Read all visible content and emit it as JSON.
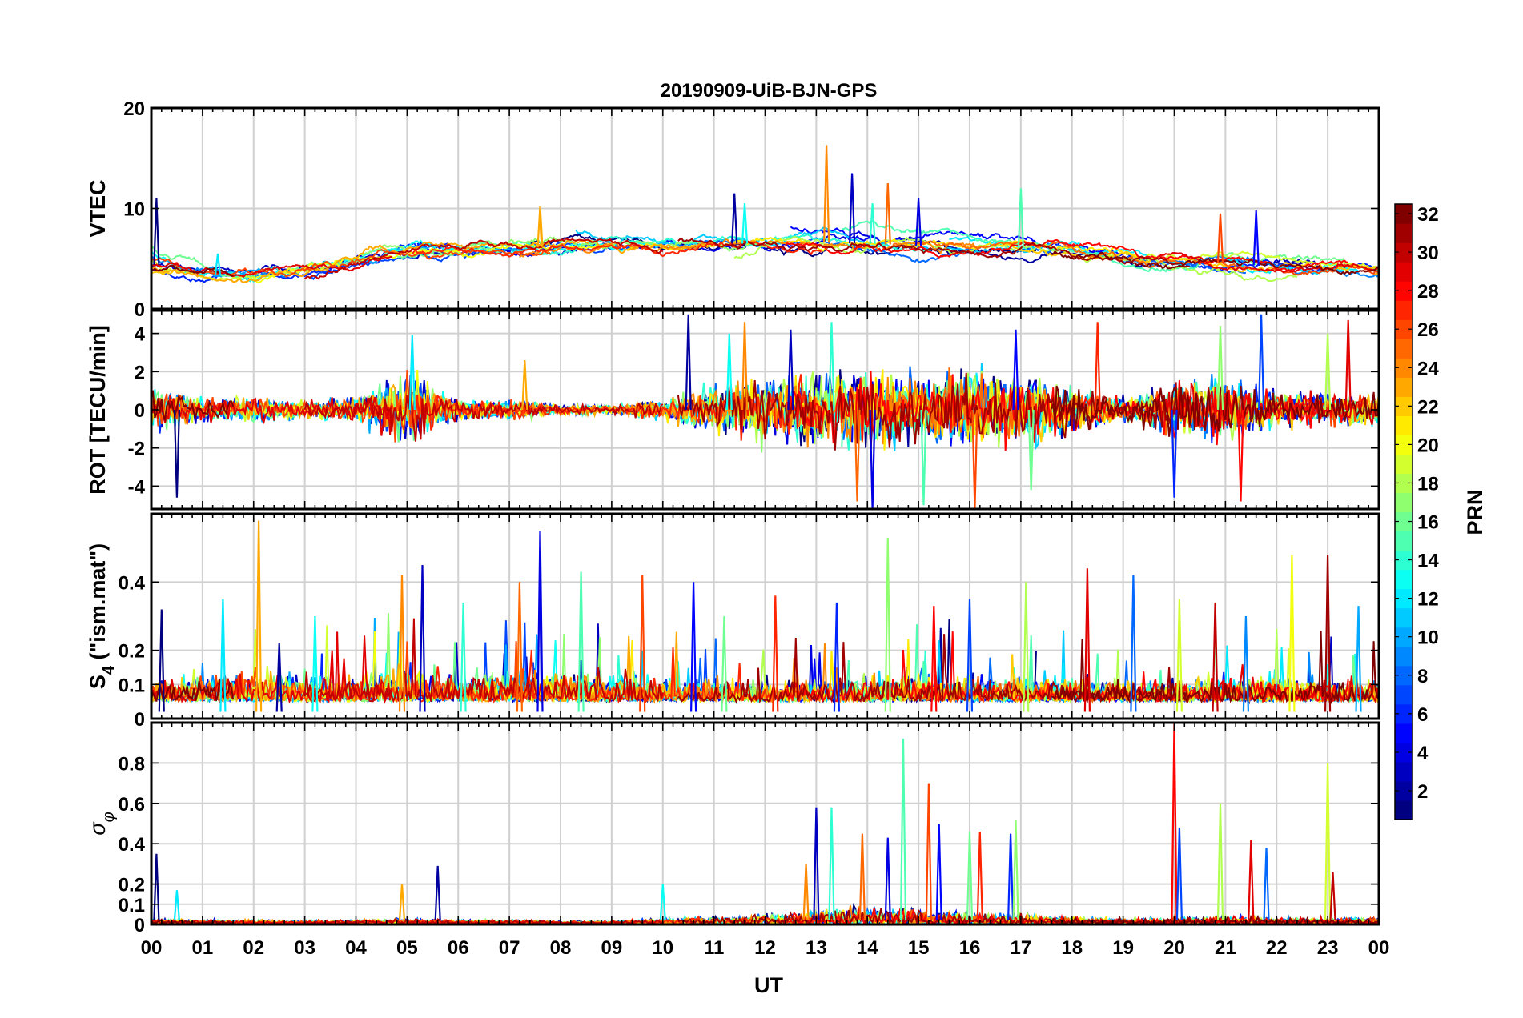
{
  "chart_data": {
    "type": "line",
    "title": "20190909-UiB-BJN-GPS",
    "xlabel": "UT",
    "x_ticks": [
      "00",
      "01",
      "02",
      "03",
      "04",
      "05",
      "06",
      "07",
      "08",
      "09",
      "10",
      "11",
      "12",
      "13",
      "14",
      "15",
      "16",
      "17",
      "18",
      "19",
      "20",
      "21",
      "22",
      "23",
      "00"
    ],
    "x_range_hours": [
      0,
      24
    ],
    "grid": true,
    "panels": [
      {
        "ylabel": "VTEC",
        "ylim": [
          0,
          20
        ],
        "yticks": [
          0,
          10,
          20
        ],
        "ytick_labels": [
          "0",
          "10",
          "20"
        ],
        "baseline_profile": [
          [
            0,
            4.5
          ],
          [
            1,
            3.5
          ],
          [
            2,
            3.2
          ],
          [
            3,
            3.8
          ],
          [
            4,
            4.8
          ],
          [
            5,
            5.6
          ],
          [
            6,
            5.8
          ],
          [
            7,
            6
          ],
          [
            8,
            6.2
          ],
          [
            9,
            6.2
          ],
          [
            10,
            6.2
          ],
          [
            11,
            6.5
          ],
          [
            12,
            6.5
          ],
          [
            13,
            6.6
          ],
          [
            14,
            6.5
          ],
          [
            15,
            6.3
          ],
          [
            16,
            6
          ],
          [
            17,
            6
          ],
          [
            18,
            5.8
          ],
          [
            19,
            5.2
          ],
          [
            20,
            4.8
          ],
          [
            21,
            4.6
          ],
          [
            22,
            4.2
          ],
          [
            23,
            4
          ],
          [
            24,
            4
          ]
        ],
        "peaks": [
          [
            0.1,
            11
          ],
          [
            1.3,
            5.5
          ],
          [
            7.6,
            10.2
          ],
          [
            11.4,
            11.5
          ],
          [
            11.6,
            10.5
          ],
          [
            13.2,
            16.3
          ],
          [
            13.7,
            13.5
          ],
          [
            14.1,
            10.5
          ],
          [
            14.4,
            12.5
          ],
          [
            15.0,
            11
          ],
          [
            17.0,
            12
          ],
          [
            20.9,
            9.5
          ],
          [
            21.6,
            9.8
          ]
        ]
      },
      {
        "ylabel": "ROT [TECU/min]",
        "ylim": [
          -5.2,
          5.2
        ],
        "yticks": [
          -4,
          -2,
          0,
          2,
          4
        ],
        "ytick_labels": [
          "-4",
          "-2",
          "0",
          "2",
          "4"
        ],
        "activity_profile": [
          [
            0,
            1.6
          ],
          [
            1,
            0.9
          ],
          [
            2,
            0.9
          ],
          [
            3,
            0.7
          ],
          [
            4,
            0.9
          ],
          [
            5,
            2.6
          ],
          [
            6,
            0.7
          ],
          [
            7,
            0.7
          ],
          [
            8,
            0.4
          ],
          [
            9,
            0.3
          ],
          [
            10,
            0.7
          ],
          [
            11,
            1.8
          ],
          [
            12,
            2.3
          ],
          [
            13,
            2.6
          ],
          [
            14,
            2.9
          ],
          [
            15,
            2.3
          ],
          [
            16,
            2.9
          ],
          [
            17,
            2.6
          ],
          [
            18,
            1.7
          ],
          [
            19,
            0.8
          ],
          [
            20,
            1.9
          ],
          [
            21,
            2.3
          ],
          [
            22,
            1.2
          ],
          [
            23,
            1.1
          ],
          [
            24,
            1.2
          ]
        ],
        "spikes": [
          [
            0.5,
            -4.6
          ],
          [
            5.1,
            3.9
          ],
          [
            7.3,
            2.6
          ],
          [
            10.5,
            5.0
          ],
          [
            11.3,
            4.0
          ],
          [
            11.6,
            4.6
          ],
          [
            12.5,
            4.2
          ],
          [
            13.3,
            4.6
          ],
          [
            13.8,
            -4.8
          ],
          [
            14.1,
            -5.2
          ],
          [
            15.1,
            -5.0
          ],
          [
            16.1,
            -5.2
          ],
          [
            16.9,
            4.2
          ],
          [
            17.2,
            -4.2
          ],
          [
            18.5,
            4.6
          ],
          [
            20.0,
            -4.6
          ],
          [
            20.9,
            4.4
          ],
          [
            21.3,
            -4.8
          ],
          [
            21.7,
            5.0
          ],
          [
            23.0,
            4.0
          ],
          [
            23.4,
            4.7
          ]
        ]
      },
      {
        "ylabel": "S_4 (\"ism.mat\")",
        "ylim": [
          0,
          0.6
        ],
        "yticks": [
          0,
          0.1,
          0.2,
          0.4
        ],
        "ytick_labels": [
          "0",
          "0.1",
          "0.2",
          "0.4"
        ],
        "activity_profile": [
          [
            0,
            0.1
          ],
          [
            1,
            0.12
          ],
          [
            2,
            0.15
          ],
          [
            3,
            0.13
          ],
          [
            4,
            0.12
          ],
          [
            5,
            0.16
          ],
          [
            6,
            0.12
          ],
          [
            7,
            0.16
          ],
          [
            8,
            0.14
          ],
          [
            9,
            0.13
          ],
          [
            10,
            0.12
          ],
          [
            11,
            0.1
          ],
          [
            12,
            0.09
          ],
          [
            13,
            0.11
          ],
          [
            14,
            0.12
          ],
          [
            15,
            0.13
          ],
          [
            16,
            0.12
          ],
          [
            17,
            0.11
          ],
          [
            18,
            0.11
          ],
          [
            19,
            0.1
          ],
          [
            20,
            0.1
          ],
          [
            21,
            0.11
          ],
          [
            22,
            0.12
          ],
          [
            23,
            0.11
          ],
          [
            24,
            0.12
          ]
        ],
        "spikes": [
          [
            0.2,
            0.32
          ],
          [
            1.4,
            0.35
          ],
          [
            2.1,
            0.58
          ],
          [
            2.5,
            0.22
          ],
          [
            3.2,
            0.3
          ],
          [
            4.9,
            0.42
          ],
          [
            5.3,
            0.45
          ],
          [
            6.1,
            0.34
          ],
          [
            7.2,
            0.4
          ],
          [
            7.6,
            0.55
          ],
          [
            8.4,
            0.43
          ],
          [
            9.6,
            0.42
          ],
          [
            10.6,
            0.4
          ],
          [
            11.2,
            0.3
          ],
          [
            12.2,
            0.36
          ],
          [
            13.4,
            0.34
          ],
          [
            14.4,
            0.53
          ],
          [
            15.3,
            0.33
          ],
          [
            16.0,
            0.35
          ],
          [
            17.1,
            0.4
          ],
          [
            18.3,
            0.44
          ],
          [
            19.2,
            0.42
          ],
          [
            20.1,
            0.35
          ],
          [
            20.8,
            0.34
          ],
          [
            21.4,
            0.3
          ],
          [
            22.3,
            0.48
          ],
          [
            23.0,
            0.48
          ],
          [
            23.6,
            0.33
          ]
        ]
      },
      {
        "ylabel": "σ_φ",
        "ylim": [
          0,
          1
        ],
        "yticks": [
          0,
          0.1,
          0.2,
          0.4,
          0.6,
          0.8
        ],
        "ytick_labels": [
          "0",
          "0.1",
          "0.2",
          "0.4",
          "0.6",
          "0.8"
        ],
        "activity_profile": [
          [
            0,
            0.04
          ],
          [
            1,
            0.03
          ],
          [
            2,
            0.03
          ],
          [
            3,
            0.02
          ],
          [
            4,
            0.03
          ],
          [
            5,
            0.04
          ],
          [
            6,
            0.03
          ],
          [
            7,
            0.03
          ],
          [
            8,
            0.02
          ],
          [
            9,
            0.02
          ],
          [
            10,
            0.04
          ],
          [
            11,
            0.05
          ],
          [
            12,
            0.07
          ],
          [
            13,
            0.1
          ],
          [
            14,
            0.13
          ],
          [
            15,
            0.11
          ],
          [
            16,
            0.08
          ],
          [
            17,
            0.08
          ],
          [
            18,
            0.05
          ],
          [
            19,
            0.04
          ],
          [
            20,
            0.05
          ],
          [
            21,
            0.06
          ],
          [
            22,
            0.05
          ],
          [
            23,
            0.04
          ],
          [
            24,
            0.05
          ]
        ],
        "spikes": [
          [
            0.1,
            0.35
          ],
          [
            0.5,
            0.17
          ],
          [
            4.9,
            0.2
          ],
          [
            5.6,
            0.29
          ],
          [
            10.0,
            0.2
          ],
          [
            12.8,
            0.3
          ],
          [
            13.0,
            0.58
          ],
          [
            13.3,
            0.58
          ],
          [
            13.9,
            0.45
          ],
          [
            14.4,
            0.43
          ],
          [
            14.7,
            0.92
          ],
          [
            15.2,
            0.7
          ],
          [
            15.4,
            0.5
          ],
          [
            16.0,
            0.46
          ],
          [
            16.2,
            0.46
          ],
          [
            16.8,
            0.45
          ],
          [
            16.9,
            0.52
          ],
          [
            20.0,
            1.0
          ],
          [
            20.1,
            0.48
          ],
          [
            20.9,
            0.6
          ],
          [
            21.5,
            0.42
          ],
          [
            21.8,
            0.38
          ],
          [
            23.0,
            0.8
          ],
          [
            23.1,
            0.26
          ]
        ]
      }
    ],
    "series": "GPS satellites PRN 1-32, each drawn in its colormap color",
    "colorbar": {
      "label": "PRN",
      "range": [
        1,
        32
      ],
      "ticks": [
        2,
        4,
        6,
        8,
        10,
        12,
        14,
        16,
        18,
        20,
        22,
        24,
        26,
        28,
        30,
        32
      ],
      "tick_labels": [
        "2",
        "4",
        "6",
        "8",
        "10",
        "12",
        "14",
        "16",
        "18",
        "20",
        "22",
        "24",
        "26",
        "28",
        "30",
        "32"
      ],
      "colormap": "jet"
    }
  }
}
